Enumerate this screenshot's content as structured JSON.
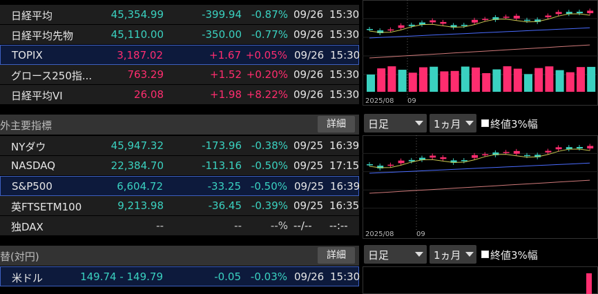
{
  "sections": [
    {
      "rows": [
        {
          "cells": [
            "日経平均",
            "45,354.99",
            "-399.94",
            "-0.87%",
            "09/26",
            "15:30"
          ],
          "color": "#3ad1c0"
        },
        {
          "cells": [
            "日経平均先物",
            "45,110.00",
            "-350.00",
            "-0.77%",
            "09/26",
            "15:30"
          ],
          "color": "#3ad1c0"
        },
        {
          "cells": [
            "TOPIX",
            "3,187.02",
            "+1.67",
            "+0.05%",
            "09/26",
            "15:30"
          ],
          "color": "#ff2d6f",
          "selected": true
        },
        {
          "cells": [
            "グロース250指...",
            "763.29",
            "+1.52",
            "+0.20%",
            "09/26",
            "15:30"
          ],
          "color": "#ff2d6f"
        },
        {
          "cells": [
            "日経平均VI",
            "26.08",
            "+1.98",
            "+8.22%",
            "09/26",
            "15:30"
          ],
          "color": "#ff2d6f"
        }
      ]
    },
    {
      "title": "外主要指標",
      "button": "詳細",
      "rows": [
        {
          "cells": [
            "NYダウ",
            "45,947.32",
            "-173.96",
            "-0.38%",
            "09/25",
            "16:39"
          ],
          "color": "#3ad1c0"
        },
        {
          "cells": [
            "NASDAQ",
            "22,384.70",
            "-113.16",
            "-0.50%",
            "09/25",
            "17:15"
          ],
          "color": "#3ad1c0"
        },
        {
          "cells": [
            "S&P500",
            "6,604.72",
            "-33.25",
            "-0.50%",
            "09/25",
            "16:39"
          ],
          "color": "#3ad1c0",
          "selected": true
        },
        {
          "cells": [
            "英FTSETM100",
            "9,213.98",
            "-36.45",
            "-0.39%",
            "09/25",
            "16:35"
          ],
          "color": "#3ad1c0"
        },
        {
          "cells": [
            "独DAX",
            "--",
            "--",
            "--%",
            "--/--",
            "--:--"
          ],
          "color": "#cccccc"
        }
      ]
    },
    {
      "title": "替(対円)",
      "button": "詳細",
      "rows": [
        {
          "cells": [
            "米ドル",
            "149.74 - 149.79",
            "-0.05",
            "-0.03%",
            "09/26",
            "15:30"
          ],
          "color": "#3ad1c0",
          "selected": true
        }
      ]
    }
  ],
  "charts": [
    {
      "labels": [
        "2025/08",
        "09"
      ]
    },
    {
      "labels": [
        "2025/08",
        "09"
      ]
    }
  ],
  "controls": [
    {
      "interval": "日足",
      "range": "1ヵ月",
      "option": "終値3%幅"
    },
    {
      "interval": "日足",
      "range": "1ヵ月",
      "option": "終値3%幅"
    }
  ]
}
